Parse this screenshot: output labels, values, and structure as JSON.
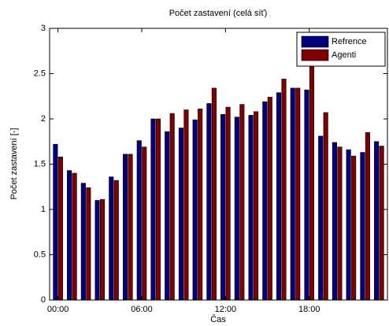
{
  "chart_data": {
    "type": "bar",
    "title": "Počet zastavení (celá síť)",
    "x_label": "Čas",
    "y_label": "Počet zastavení [-]",
    "categories": [
      "00:00",
      null,
      null,
      null,
      null,
      null,
      "06:00",
      null,
      null,
      null,
      null,
      null,
      "12:00",
      null,
      null,
      null,
      null,
      null,
      "18:00",
      null,
      null,
      null,
      null,
      null
    ],
    "series": [
      {
        "name": "Refrence",
        "color": "#00007f",
        "values": [
          1.72,
          1.43,
          1.29,
          1.1,
          1.36,
          1.61,
          1.76,
          2.0,
          1.86,
          1.9,
          1.99,
          2.17,
          2.05,
          2.02,
          2.04,
          2.19,
          2.29,
          2.34,
          2.32,
          1.81,
          1.74,
          1.66,
          1.63,
          1.75
        ]
      },
      {
        "name": "Agenti",
        "color": "#7f0000",
        "values": [
          1.58,
          1.4,
          1.24,
          1.11,
          1.32,
          1.61,
          1.69,
          2.0,
          2.06,
          2.1,
          2.11,
          2.34,
          2.13,
          2.16,
          2.08,
          2.24,
          2.44,
          2.34,
          2.6,
          2.07,
          1.69,
          1.59,
          1.85,
          1.7
        ]
      }
    ],
    "ylim": [
      0,
      3
    ],
    "yticks": [
      0,
      0.5,
      1,
      1.5,
      2,
      2.5,
      3
    ],
    "legend": "upper right"
  }
}
